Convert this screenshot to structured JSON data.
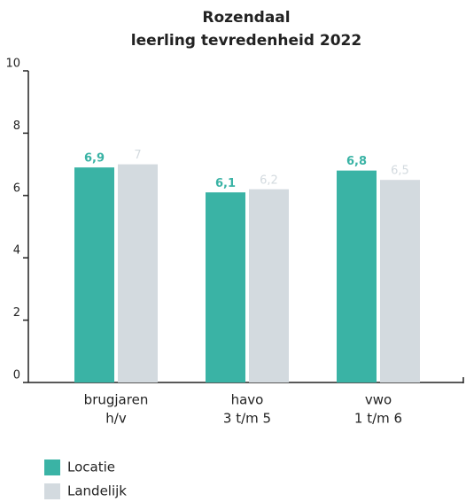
{
  "chart_data": {
    "type": "bar",
    "title": [
      "Rozendaal",
      "leerling tevredenheid 2022"
    ],
    "categories": [
      [
        "brugjaren",
        "h/v"
      ],
      [
        "havo",
        "3 t/m 5"
      ],
      [
        "vwo",
        "1 t/m 6"
      ]
    ],
    "series": [
      {
        "name": "Locatie",
        "color": "#3ab3a5",
        "values": [
          6.9,
          6.1,
          6.8
        ],
        "value_labels": [
          "6,9",
          "6,1",
          "6,8"
        ]
      },
      {
        "name": "Landelijk",
        "color": "#d3dadf",
        "values": [
          7,
          6.2,
          6.5
        ],
        "value_labels": [
          "7",
          "6,2",
          "6,5"
        ]
      }
    ],
    "ylim": [
      0,
      10
    ],
    "yticks": [
      0,
      2,
      4,
      6,
      8,
      10
    ],
    "grid": false
  }
}
